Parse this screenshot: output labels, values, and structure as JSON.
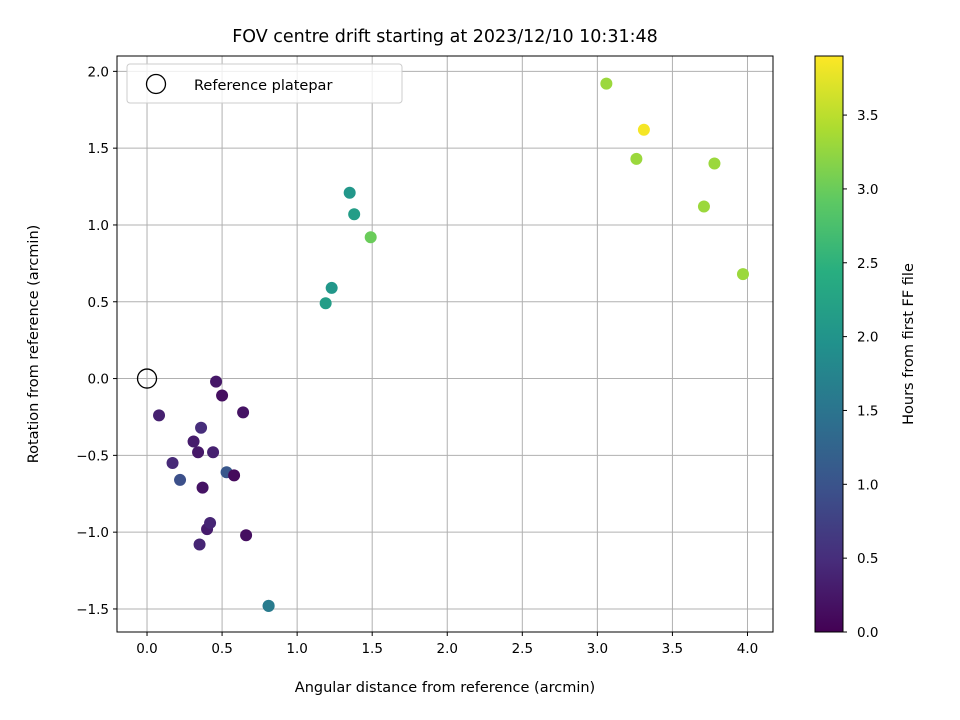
{
  "chart_data": {
    "type": "scatter",
    "title": "FOV centre drift starting at 2023/12/10 10:31:48",
    "xlabel": "Angular distance from reference (arcmin)",
    "ylabel": "Rotation from reference (arcmin)",
    "xlim": [
      -0.2,
      4.17
    ],
    "ylim": [
      -1.65,
      2.1
    ],
    "xticks": [
      0.0,
      0.5,
      1.0,
      1.5,
      2.0,
      2.5,
      3.0,
      3.5,
      4.0
    ],
    "xtick_labels": [
      "0.0",
      "0.5",
      "1.0",
      "1.5",
      "2.0",
      "2.5",
      "3.0",
      "3.5",
      "4.0"
    ],
    "yticks": [
      -1.5,
      -1.0,
      -0.5,
      0.0,
      0.5,
      1.0,
      1.5,
      2.0
    ],
    "ytick_labels": [
      "−1.5",
      "−1.0",
      "−0.5",
      "0.0",
      "0.5",
      "1.0",
      "1.5",
      "2.0"
    ],
    "grid": true,
    "legend": {
      "placement": "top-left",
      "entries": [
        {
          "label": "Reference platepar",
          "marker": "open-circle"
        }
      ]
    },
    "reference_point": {
      "x": 0.0,
      "y": 0.0,
      "label": "Reference platepar"
    },
    "colorbar": {
      "label": "Hours from first FF file",
      "colormap": "viridis",
      "range": [
        0.0,
        3.9
      ],
      "ticks": [
        0.0,
        0.5,
        1.0,
        1.5,
        2.0,
        2.5,
        3.0,
        3.5
      ],
      "tick_labels": [
        "0.0",
        "0.5",
        "1.0",
        "1.5",
        "2.0",
        "2.5",
        "3.0",
        "3.5"
      ]
    },
    "points": [
      {
        "x": 0.08,
        "y": -0.24,
        "hours": 0.35
      },
      {
        "x": 0.17,
        "y": -0.55,
        "hours": 0.45
      },
      {
        "x": 0.22,
        "y": -0.66,
        "hours": 0.95
      },
      {
        "x": 0.31,
        "y": -0.41,
        "hours": 0.3
      },
      {
        "x": 0.34,
        "y": -0.48,
        "hours": 0.25
      },
      {
        "x": 0.36,
        "y": -0.32,
        "hours": 0.5
      },
      {
        "x": 0.37,
        "y": -0.71,
        "hours": 0.2
      },
      {
        "x": 0.35,
        "y": -1.08,
        "hours": 0.4
      },
      {
        "x": 0.4,
        "y": -0.98,
        "hours": 0.3
      },
      {
        "x": 0.42,
        "y": -0.94,
        "hours": 0.4
      },
      {
        "x": 0.44,
        "y": -0.48,
        "hours": 0.35
      },
      {
        "x": 0.46,
        "y": -0.02,
        "hours": 0.25
      },
      {
        "x": 0.5,
        "y": -0.11,
        "hours": 0.15
      },
      {
        "x": 0.53,
        "y": -0.61,
        "hours": 1.05
      },
      {
        "x": 0.58,
        "y": -0.63,
        "hours": 0.1
      },
      {
        "x": 0.64,
        "y": -0.22,
        "hours": 0.2
      },
      {
        "x": 0.66,
        "y": -1.02,
        "hours": 0.15
      },
      {
        "x": 0.81,
        "y": -1.48,
        "hours": 1.5
      },
      {
        "x": 0.81,
        "y": -1.48,
        "hours": 1.6
      },
      {
        "x": 1.19,
        "y": 0.49,
        "hours": 2.15
      },
      {
        "x": 1.23,
        "y": 0.59,
        "hours": 2.05
      },
      {
        "x": 1.35,
        "y": 1.21,
        "hours": 2.05
      },
      {
        "x": 1.38,
        "y": 1.07,
        "hours": 2.15
      },
      {
        "x": 1.49,
        "y": 0.92,
        "hours": 3.0
      },
      {
        "x": 3.06,
        "y": 1.92,
        "hours": 3.3
      },
      {
        "x": 3.26,
        "y": 1.43,
        "hours": 3.3
      },
      {
        "x": 3.31,
        "y": 1.62,
        "hours": 3.85
      },
      {
        "x": 3.71,
        "y": 1.12,
        "hours": 3.3
      },
      {
        "x": 3.78,
        "y": 1.4,
        "hours": 3.3
      },
      {
        "x": 3.97,
        "y": 0.68,
        "hours": 3.3
      }
    ]
  }
}
